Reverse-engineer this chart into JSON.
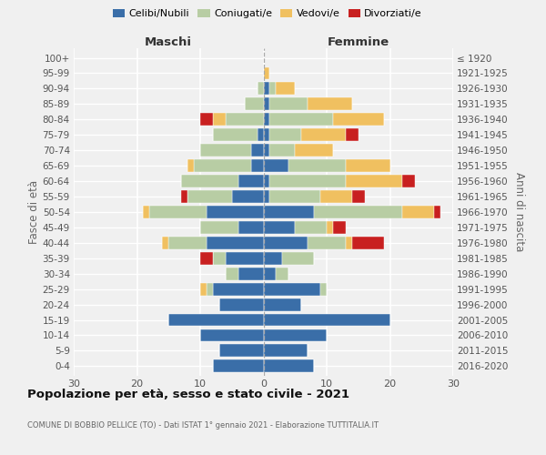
{
  "age_groups": [
    "0-4",
    "5-9",
    "10-14",
    "15-19",
    "20-24",
    "25-29",
    "30-34",
    "35-39",
    "40-44",
    "45-49",
    "50-54",
    "55-59",
    "60-64",
    "65-69",
    "70-74",
    "75-79",
    "80-84",
    "85-89",
    "90-94",
    "95-99",
    "100+"
  ],
  "birth_years": [
    "2016-2020",
    "2011-2015",
    "2006-2010",
    "2001-2005",
    "1996-2000",
    "1991-1995",
    "1986-1990",
    "1981-1985",
    "1976-1980",
    "1971-1975",
    "1966-1970",
    "1961-1965",
    "1956-1960",
    "1951-1955",
    "1946-1950",
    "1941-1945",
    "1936-1940",
    "1931-1935",
    "1926-1930",
    "1921-1925",
    "≤ 1920"
  ],
  "male": {
    "celibe": [
      8,
      7,
      10,
      15,
      7,
      8,
      4,
      6,
      9,
      4,
      9,
      5,
      4,
      2,
      2,
      1,
      0,
      0,
      0,
      0,
      0
    ],
    "coniugato": [
      0,
      0,
      0,
      0,
      0,
      1,
      2,
      2,
      6,
      6,
      9,
      7,
      9,
      9,
      8,
      7,
      6,
      3,
      1,
      0,
      0
    ],
    "vedovo": [
      0,
      0,
      0,
      0,
      0,
      1,
      0,
      0,
      1,
      0,
      1,
      0,
      0,
      1,
      0,
      0,
      2,
      0,
      0,
      0,
      0
    ],
    "divorziato": [
      0,
      0,
      0,
      0,
      0,
      0,
      0,
      2,
      0,
      0,
      0,
      1,
      0,
      0,
      0,
      0,
      2,
      0,
      0,
      0,
      0
    ]
  },
  "female": {
    "nubile": [
      8,
      7,
      10,
      20,
      6,
      9,
      2,
      3,
      7,
      5,
      8,
      1,
      1,
      4,
      1,
      1,
      1,
      1,
      1,
      0,
      0
    ],
    "coniugata": [
      0,
      0,
      0,
      0,
      0,
      1,
      2,
      5,
      6,
      5,
      14,
      8,
      12,
      9,
      4,
      5,
      10,
      6,
      1,
      0,
      0
    ],
    "vedova": [
      0,
      0,
      0,
      0,
      0,
      0,
      0,
      0,
      1,
      1,
      5,
      5,
      9,
      7,
      6,
      7,
      8,
      7,
      3,
      1,
      0
    ],
    "divorziata": [
      0,
      0,
      0,
      0,
      0,
      0,
      0,
      0,
      5,
      2,
      1,
      2,
      2,
      0,
      0,
      2,
      0,
      0,
      0,
      0,
      0
    ]
  },
  "colors": {
    "celibe": "#3a6ea8",
    "coniugato": "#b8cda4",
    "vedovo": "#f0c060",
    "divorziato": "#c82020"
  },
  "legend_labels": [
    "Celibi/Nubili",
    "Coniugati/e",
    "Vedovi/e",
    "Divorziati/e"
  ],
  "title": "Popolazione per età, sesso e stato civile - 2021",
  "subtitle": "COMUNE DI BOBBIO PELLICE (TO) - Dati ISTAT 1° gennaio 2021 - Elaborazione TUTTITALIA.IT",
  "xlabel_left": "Maschi",
  "xlabel_right": "Femmine",
  "ylabel_left": "Fasce di età",
  "ylabel_right": "Anni di nascita",
  "xlim": 30,
  "background_color": "#f0f0f0"
}
